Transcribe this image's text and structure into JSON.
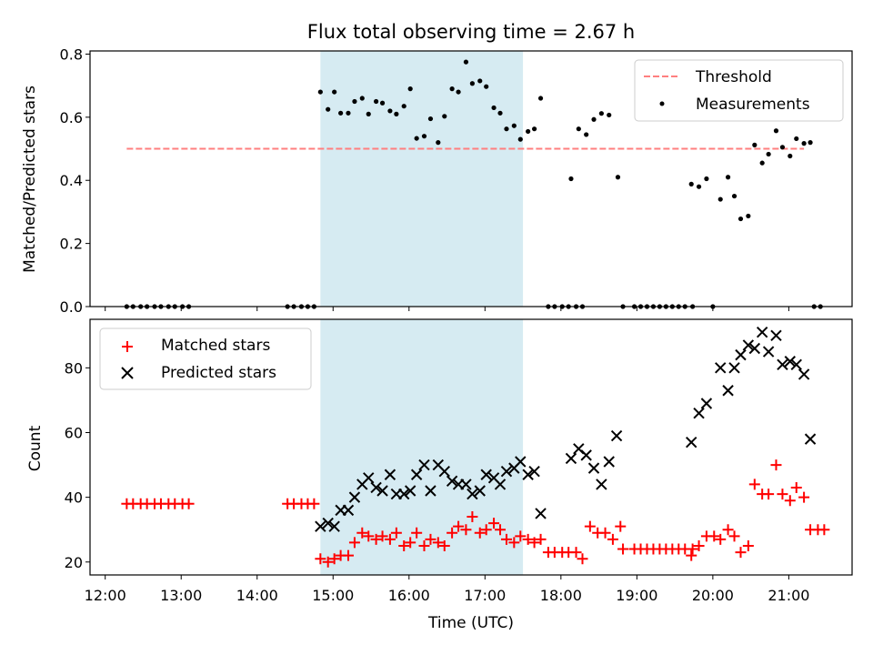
{
  "title": "Flux total observing time = 2.67 h",
  "colors": {
    "threshold": "#ff7f7f",
    "measurements": "#000000",
    "matched": "#ff0000",
    "predicted": "#000000",
    "shade": "#add8e6"
  },
  "chart_data": [
    {
      "type": "scatter",
      "ylabel": "Matched/Predicted stars",
      "ylim": [
        0,
        0.81
      ],
      "yticks": [
        0.0,
        0.2,
        0.4,
        0.6,
        0.8
      ],
      "ytick_labels": [
        "0.0",
        "0.2",
        "0.4",
        "0.6",
        "0.8"
      ],
      "xlim": [
        "11:48",
        "21:50"
      ],
      "shaded_span": [
        "14:50",
        "17:30"
      ],
      "legend": {
        "placement": "upper right",
        "threshold_label": "Threshold",
        "measurements_label": "Measurements"
      },
      "threshold": {
        "value": 0.5,
        "x": [
          "12:17",
          "21:12"
        ]
      },
      "series": [
        {
          "name": "Measurements",
          "points": [
            [
              "12:17",
              0
            ],
            [
              "12:22",
              0
            ],
            [
              "12:28",
              0
            ],
            [
              "12:33",
              0
            ],
            [
              "12:39",
              0
            ],
            [
              "12:44",
              0
            ],
            [
              "12:50",
              0
            ],
            [
              "12:55",
              0
            ],
            [
              "13:01",
              0
            ],
            [
              "13:06",
              0
            ],
            [
              "14:24",
              0
            ],
            [
              "14:29",
              0
            ],
            [
              "14:35",
              0
            ],
            [
              "14:40",
              0
            ],
            [
              "14:45",
              0
            ],
            [
              "14:50",
              0.68
            ],
            [
              "14:56",
              0.625
            ],
            [
              "15:01",
              0.68
            ],
            [
              "15:06",
              0.613
            ],
            [
              "15:12",
              0.613
            ],
            [
              "15:17",
              0.65
            ],
            [
              "15:23",
              0.66
            ],
            [
              "15:28",
              0.61
            ],
            [
              "15:34",
              0.65
            ],
            [
              "15:39",
              0.645
            ],
            [
              "15:45",
              0.62
            ],
            [
              "15:50",
              0.61
            ],
            [
              "15:56",
              0.635
            ],
            [
              "16:01",
              0.69
            ],
            [
              "16:06",
              0.533
            ],
            [
              "16:12",
              0.54
            ],
            [
              "16:17",
              0.595
            ],
            [
              "16:23",
              0.52
            ],
            [
              "16:28",
              0.603
            ],
            [
              "16:34",
              0.69
            ],
            [
              "16:39",
              0.68
            ],
            [
              "16:45",
              0.775
            ],
            [
              "16:50",
              0.707
            ],
            [
              "16:56",
              0.715
            ],
            [
              "17:01",
              0.697
            ],
            [
              "17:07",
              0.63
            ],
            [
              "17:12",
              0.613
            ],
            [
              "17:17",
              0.563
            ],
            [
              "17:23",
              0.573
            ],
            [
              "17:28",
              0.53
            ],
            [
              "17:34",
              0.555
            ],
            [
              "17:39",
              0.563
            ],
            [
              "17:44",
              0.66
            ],
            [
              "17:50",
              0
            ],
            [
              "17:55",
              0
            ],
            [
              "18:01",
              0
            ],
            [
              "18:06",
              0
            ],
            [
              "18:12",
              0
            ],
            [
              "18:17",
              0
            ],
            [
              "18:08",
              0.405
            ],
            [
              "18:14",
              0.563
            ],
            [
              "18:20",
              0.545
            ],
            [
              "18:26",
              0.593
            ],
            [
              "18:32",
              0.612
            ],
            [
              "18:38",
              0.607
            ],
            [
              "18:45",
              0.41
            ],
            [
              "18:49",
              0
            ],
            [
              "18:58",
              0
            ],
            [
              "19:03",
              0
            ],
            [
              "19:08",
              0
            ],
            [
              "19:13",
              0
            ],
            [
              "19:18",
              0
            ],
            [
              "19:23",
              0
            ],
            [
              "19:28",
              0
            ],
            [
              "19:33",
              0
            ],
            [
              "19:38",
              0
            ],
            [
              "19:44",
              0
            ],
            [
              "19:43",
              0.388
            ],
            [
              "19:49",
              0.38
            ],
            [
              "19:55",
              0.405
            ],
            [
              "20:06",
              0.34
            ],
            [
              "20:12",
              0.41
            ],
            [
              "20:17",
              0.35
            ],
            [
              "20:22",
              0.278
            ],
            [
              "20:28",
              0.287
            ],
            [
              "20:33",
              0.512
            ],
            [
              "20:39",
              0.455
            ],
            [
              "20:44",
              0.483
            ],
            [
              "20:50",
              0.557
            ],
            [
              "20:55",
              0.505
            ],
            [
              "21:01",
              0.477
            ],
            [
              "21:06",
              0.532
            ],
            [
              "21:12",
              0.517
            ],
            [
              "21:17",
              0.52
            ],
            [
              "21:20",
              0
            ],
            [
              "21:25",
              0
            ],
            [
              "20:00",
              0
            ]
          ]
        }
      ]
    },
    {
      "type": "scatter",
      "xlabel": "Time (UTC)",
      "ylabel": "Count",
      "ylim": [
        16,
        95
      ],
      "yticks": [
        20,
        40,
        60,
        80
      ],
      "ytick_labels": [
        "20",
        "40",
        "60",
        "80"
      ],
      "xlim": [
        "11:48",
        "21:50"
      ],
      "xticks": [
        "12:00",
        "13:00",
        "14:00",
        "15:00",
        "16:00",
        "17:00",
        "18:00",
        "19:00",
        "20:00",
        "21:00"
      ],
      "xtick_labels": [
        "12:00",
        "13:00",
        "14:00",
        "15:00",
        "16:00",
        "17:00",
        "18:00",
        "19:00",
        "20:00",
        "21:00"
      ],
      "shaded_span": [
        "14:50",
        "17:30"
      ],
      "legend": {
        "placement": "upper left",
        "matched_label": "Matched stars",
        "predicted_label": "Predicted stars"
      },
      "series": [
        {
          "name": "Matched stars",
          "points": [
            [
              "12:17",
              38
            ],
            [
              "12:22",
              38
            ],
            [
              "12:28",
              38
            ],
            [
              "12:33",
              38
            ],
            [
              "12:39",
              38
            ],
            [
              "12:44",
              38
            ],
            [
              "12:50",
              38
            ],
            [
              "12:55",
              38
            ],
            [
              "13:01",
              38
            ],
            [
              "13:06",
              38
            ],
            [
              "14:24",
              38
            ],
            [
              "14:29",
              38
            ],
            [
              "14:35",
              38
            ],
            [
              "14:40",
              38
            ],
            [
              "14:45",
              38
            ],
            [
              "14:50",
              21
            ],
            [
              "14:56",
              20
            ],
            [
              "15:01",
              21
            ],
            [
              "15:06",
              22
            ],
            [
              "15:12",
              22
            ],
            [
              "15:17",
              26
            ],
            [
              "15:23",
              29
            ],
            [
              "15:28",
              28
            ],
            [
              "15:34",
              27
            ],
            [
              "15:39",
              28
            ],
            [
              "15:45",
              27
            ],
            [
              "15:50",
              29
            ],
            [
              "15:56",
              25
            ],
            [
              "16:01",
              26
            ],
            [
              "16:06",
              29
            ],
            [
              "16:12",
              25
            ],
            [
              "16:17",
              27
            ],
            [
              "16:23",
              26
            ],
            [
              "16:28",
              25
            ],
            [
              "16:34",
              29
            ],
            [
              "16:39",
              31
            ],
            [
              "16:45",
              30
            ],
            [
              "16:50",
              34
            ],
            [
              "16:56",
              29
            ],
            [
              "17:01",
              30
            ],
            [
              "17:07",
              32
            ],
            [
              "17:12",
              30
            ],
            [
              "17:17",
              27
            ],
            [
              "17:23",
              26
            ],
            [
              "17:28",
              28
            ],
            [
              "17:34",
              27
            ],
            [
              "17:39",
              26
            ],
            [
              "17:44",
              27
            ],
            [
              "17:50",
              23
            ],
            [
              "17:55",
              23
            ],
            [
              "18:01",
              23
            ],
            [
              "18:06",
              23
            ],
            [
              "18:12",
              23
            ],
            [
              "18:17",
              21
            ],
            [
              "18:23",
              31
            ],
            [
              "18:29",
              29
            ],
            [
              "18:35",
              29
            ],
            [
              "18:41",
              27
            ],
            [
              "18:47",
              31
            ],
            [
              "18:49",
              24
            ],
            [
              "18:58",
              24
            ],
            [
              "19:03",
              24
            ],
            [
              "19:08",
              24
            ],
            [
              "19:13",
              24
            ],
            [
              "19:18",
              24
            ],
            [
              "19:23",
              24
            ],
            [
              "19:28",
              24
            ],
            [
              "19:33",
              24
            ],
            [
              "19:38",
              24
            ],
            [
              "19:44",
              24
            ],
            [
              "19:43",
              22
            ],
            [
              "19:49",
              25
            ],
            [
              "19:55",
              28
            ],
            [
              "20:01",
              28
            ],
            [
              "20:06",
              27
            ],
            [
              "20:12",
              30
            ],
            [
              "20:17",
              28
            ],
            [
              "20:22",
              23
            ],
            [
              "20:28",
              25
            ],
            [
              "20:33",
              44
            ],
            [
              "20:39",
              41
            ],
            [
              "20:44",
              41
            ],
            [
              "20:50",
              50
            ],
            [
              "20:55",
              41
            ],
            [
              "21:01",
              39
            ],
            [
              "21:06",
              43
            ],
            [
              "21:12",
              40
            ],
            [
              "21:17",
              30
            ],
            [
              "21:23",
              30
            ],
            [
              "21:28",
              30
            ]
          ]
        },
        {
          "name": "Predicted stars",
          "points": [
            [
              "14:50",
              31
            ],
            [
              "14:56",
              32
            ],
            [
              "15:01",
              31
            ],
            [
              "15:06",
              36
            ],
            [
              "15:12",
              36
            ],
            [
              "15:17",
              40
            ],
            [
              "15:23",
              44
            ],
            [
              "15:28",
              46
            ],
            [
              "15:34",
              43
            ],
            [
              "15:39",
              42
            ],
            [
              "15:45",
              47
            ],
            [
              "15:50",
              41
            ],
            [
              "15:56",
              41
            ],
            [
              "16:01",
              42
            ],
            [
              "16:06",
              47
            ],
            [
              "16:12",
              50
            ],
            [
              "16:17",
              42
            ],
            [
              "16:23",
              50
            ],
            [
              "16:28",
              48
            ],
            [
              "16:34",
              45
            ],
            [
              "16:39",
              44
            ],
            [
              "16:45",
              44
            ],
            [
              "16:50",
              41
            ],
            [
              "16:56",
              42
            ],
            [
              "17:01",
              47
            ],
            [
              "17:07",
              46
            ],
            [
              "17:12",
              44
            ],
            [
              "17:17",
              48
            ],
            [
              "17:23",
              49
            ],
            [
              "17:28",
              51
            ],
            [
              "17:34",
              47
            ],
            [
              "17:39",
              48
            ],
            [
              "17:44",
              35
            ],
            [
              "18:08",
              52
            ],
            [
              "18:14",
              55
            ],
            [
              "18:20",
              53
            ],
            [
              "18:26",
              49
            ],
            [
              "18:32",
              44
            ],
            [
              "18:38",
              51
            ],
            [
              "18:44",
              59
            ],
            [
              "19:43",
              57
            ],
            [
              "19:49",
              66
            ],
            [
              "19:55",
              69
            ],
            [
              "20:06",
              80
            ],
            [
              "20:12",
              73
            ],
            [
              "20:17",
              80
            ],
            [
              "20:22",
              84
            ],
            [
              "20:28",
              87
            ],
            [
              "20:33",
              86
            ],
            [
              "20:39",
              91
            ],
            [
              "20:44",
              85
            ],
            [
              "20:50",
              90
            ],
            [
              "20:55",
              81
            ],
            [
              "21:01",
              82
            ],
            [
              "21:06",
              81
            ],
            [
              "21:12",
              78
            ],
            [
              "21:17",
              58
            ]
          ]
        }
      ]
    }
  ]
}
